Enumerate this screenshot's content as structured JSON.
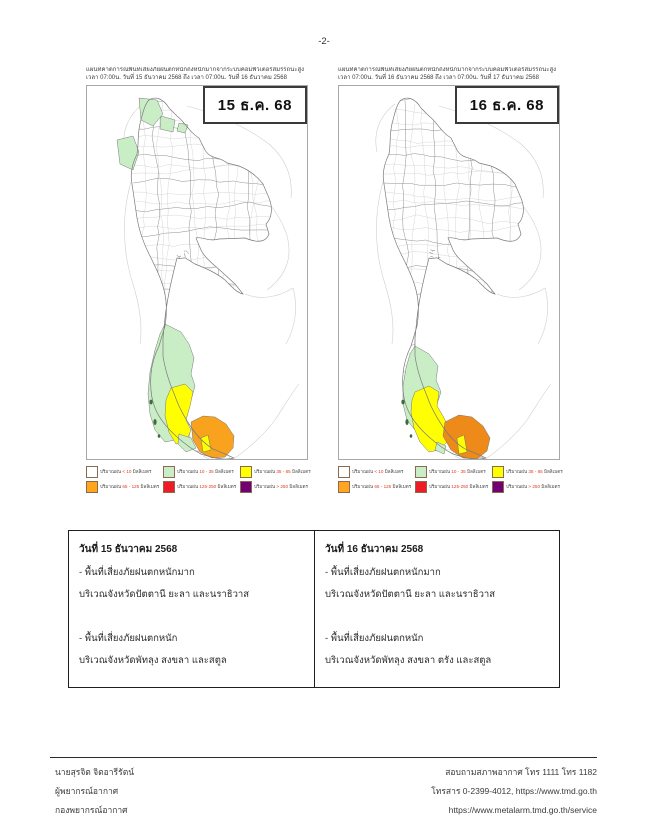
{
  "page": {
    "number": "-2-"
  },
  "maps": [
    {
      "title_line1": "แผนที่คาดการณ์พื้นที่เสี่ยงภัยฝนตกหนักถึงหนักมากจากระบบคอมพิวเตอร์สมรรถนะสูง",
      "title_line2": "เวลา 07:00น. วันที่ 15 ธันวาคม 2568 ถึง เวลา 07:00น. วันที่ 16 ธันวาคม 2568",
      "date_badge": "15 ธ.ค. 68",
      "regions": {
        "light": "#c9eec6",
        "moderate": "#ffff00",
        "heavy": "#f8a21d"
      }
    },
    {
      "title_line1": "แผนที่คาดการณ์พื้นที่เสี่ยงภัยฝนตกหนักถึงหนักมากจากระบบคอมพิวเตอร์สมรรถนะสูง",
      "title_line2": "เวลา 07:00น. วันที่ 16 ธันวาคม 2568 ถึง เวลา 07:00น. วันที่ 17 ธันวาคม 2568",
      "date_badge": "16 ธ.ค. 68",
      "regions": {
        "light": "#c9eec6",
        "moderate": "#ffff00",
        "heavy": "#ee8a1a"
      }
    }
  ],
  "legend": {
    "prefix": "ปริมาณฝน",
    "unit": "มิลลิเมตร",
    "items": [
      {
        "name": "rain-lt-10",
        "color": "#ffffff",
        "value": "< 10"
      },
      {
        "name": "rain-10-35",
        "color": "#c9eec6",
        "value": "10 - 35"
      },
      {
        "name": "rain-35-65",
        "color": "#ffff00",
        "value": "35 - 65"
      },
      {
        "name": "rain-65-125",
        "color": "#ffa51e",
        "value": "65 - 125"
      },
      {
        "name": "rain-125-250",
        "color": "#ee1c25",
        "value": "125-250"
      },
      {
        "name": "rain-gt-250",
        "color": "#730073",
        "value": "> 250"
      }
    ]
  },
  "table": {
    "columns": [
      {
        "title": "วันที่ 15 ธันวาคม 2568",
        "lines": [
          "- พื้นที่เสี่ยงภัยฝนตกหนักมาก",
          "บริเวณจังหวัดปัตตานี ยะลา และนราธิวาส",
          "",
          "- พื้นที่เสี่ยงภัยฝนตกหนัก",
          "บริเวณจังหวัดพัทลุง สงขลา และสตูล"
        ]
      },
      {
        "title": "วันที่ 16 ธันวาคม 2568",
        "lines": [
          "- พื้นที่เสี่ยงภัยฝนตกหนักมาก",
          "บริเวณจังหวัดปัตตานี ยะลา และนราธิวาส",
          "",
          "- พื้นที่เสี่ยงภัยฝนตกหนัก",
          "บริเวณจังหวัดพัทลุง สงขลา ตรัง และสตูล"
        ]
      }
    ]
  },
  "footer": {
    "left_lines": [
      "นายสุรจิต จิตอารีรัตน์",
      "ผู้พยากรณ์อากาศ",
      "กองพยากรณ์อากาศ"
    ],
    "right_lines": [
      "สอบถามสภาพอากาศ โทร 1111 โทร 1182",
      "โทรสาร 0-2399-4012, https://www.tmd.go.th",
      "https://www.metalarm.tmd.go.th/service"
    ]
  }
}
